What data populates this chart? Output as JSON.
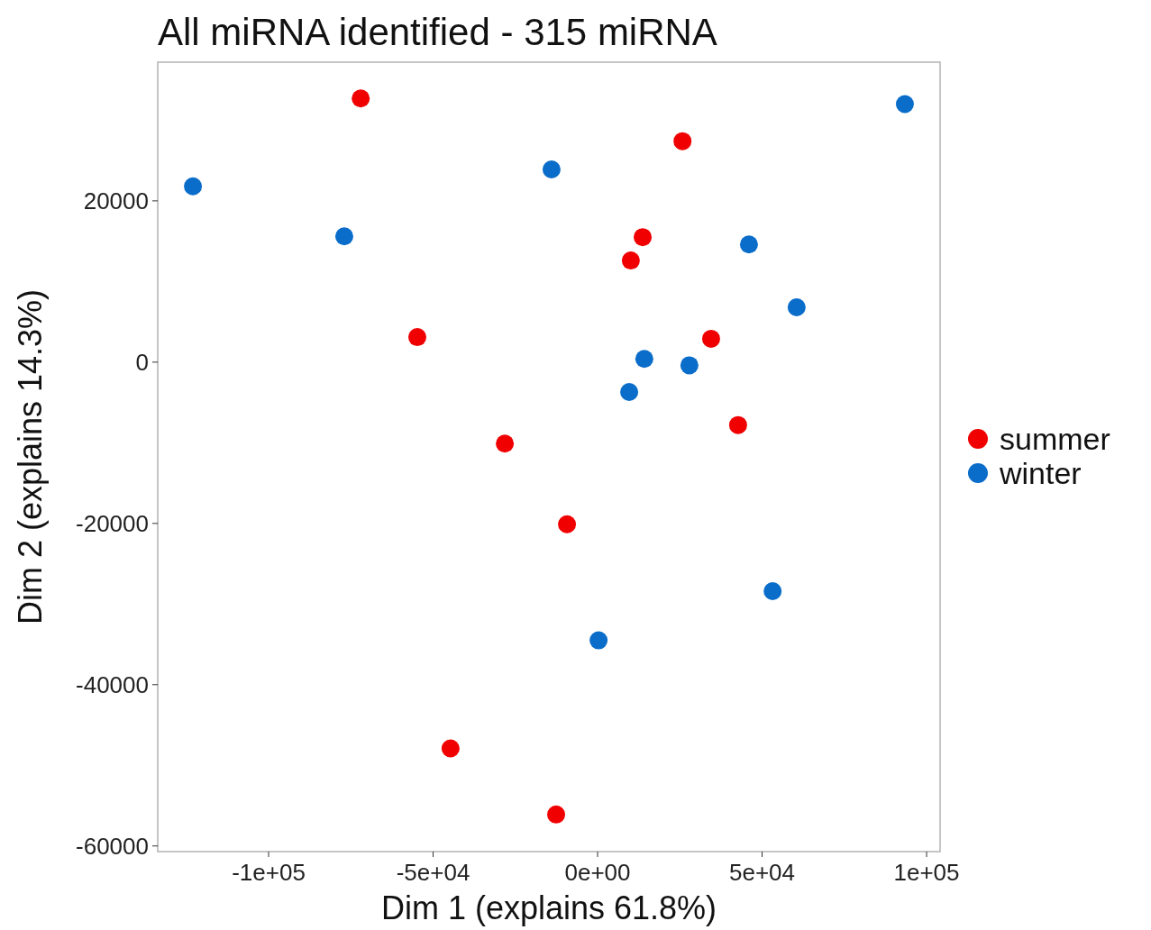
{
  "chart_data": {
    "type": "scatter",
    "title": "All miRNA identified - 315 miRNA",
    "xlabel": "Dim 1 (explains 61.8%)",
    "ylabel": "Dim 2 (explains 14.3%)",
    "xlim": [
      -133700,
      104100
    ],
    "ylim": [
      -60700,
      37200
    ],
    "xticks": [
      {
        "value": -100000,
        "label": "-1e+05"
      },
      {
        "value": -50000,
        "label": "-5e+04"
      },
      {
        "value": 0,
        "label": "0e+00"
      },
      {
        "value": 50000,
        "label": "5e+04"
      },
      {
        "value": 100000,
        "label": "1e+05"
      }
    ],
    "yticks": [
      -60000,
      -40000,
      -20000,
      0,
      20000
    ],
    "grid": false,
    "legend": "right",
    "marker": "circle",
    "series": [
      {
        "name": "summer",
        "color": "#f00000",
        "x": [
          -72000,
          25800,
          13700,
          10100,
          -54800,
          34500,
          -28200,
          42700,
          -9300,
          -44700,
          -12600
        ],
        "values": [
          32700,
          27400,
          15500,
          12600,
          3100,
          2900,
          -10100,
          -7800,
          -20100,
          -47900,
          -56100
        ]
      },
      {
        "name": "winter",
        "color": "#0a6dc9",
        "x": [
          -123000,
          -77000,
          -14000,
          93400,
          46000,
          60500,
          14200,
          27900,
          9600,
          53200,
          300
        ],
        "values": [
          21800,
          15600,
          23900,
          32000,
          14600,
          6800,
          400,
          -400,
          -3700,
          -28400,
          -34500
        ]
      }
    ]
  }
}
